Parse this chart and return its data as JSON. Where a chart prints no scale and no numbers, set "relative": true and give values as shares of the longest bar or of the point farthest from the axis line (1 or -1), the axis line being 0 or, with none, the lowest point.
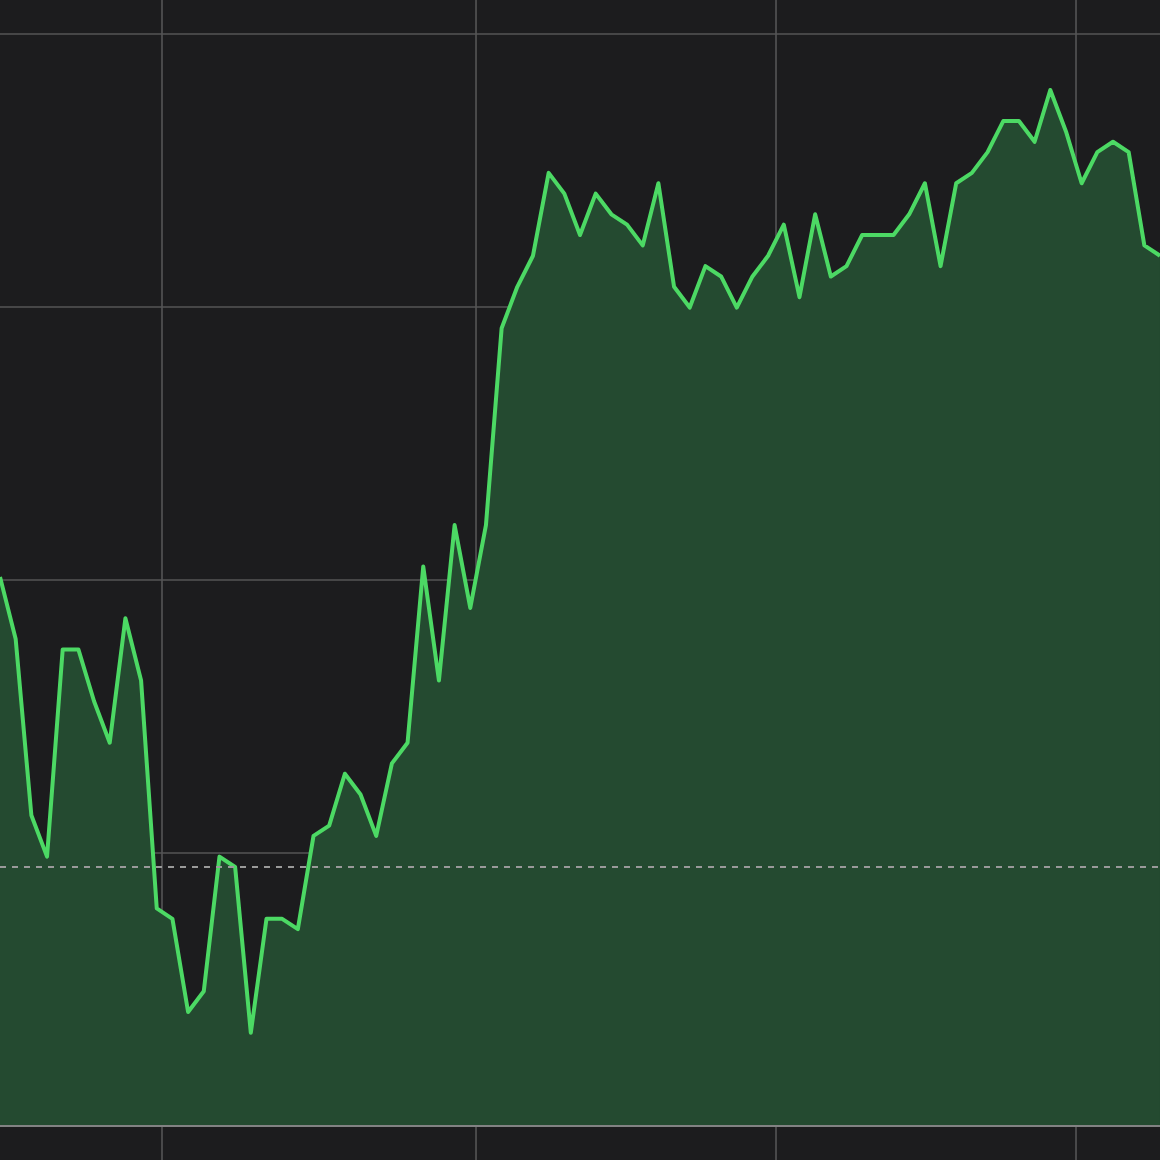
{
  "chart_data": {
    "type": "area",
    "relative": true,
    "color": "#4cd964",
    "grid": true,
    "categories": [
      null,
      null,
      null,
      null,
      null,
      null,
      null,
      null,
      null,
      null,
      null,
      null,
      null,
      null,
      null,
      null,
      null,
      null,
      null,
      null,
      null,
      null,
      null,
      null,
      null,
      null,
      null,
      null,
      null,
      null,
      null,
      null,
      null,
      null,
      null,
      null,
      null,
      null,
      null,
      null,
      null,
      null,
      null,
      null,
      null,
      null,
      null,
      null,
      null,
      null,
      null,
      null,
      null,
      null,
      null,
      null,
      null,
      null,
      null,
      null,
      null,
      null,
      null,
      null,
      null,
      null,
      null,
      null,
      null,
      null,
      null,
      null,
      null,
      null,
      null
    ],
    "values": [
      0.53,
      0.47,
      0.3,
      0.26,
      0.46,
      0.46,
      0.41,
      0.37,
      0.49,
      0.43,
      0.21,
      0.2,
      0.11,
      0.13,
      0.26,
      0.25,
      0.09,
      0.2,
      0.2,
      0.19,
      0.28,
      0.29,
      0.34,
      0.32,
      0.28,
      0.35,
      0.37,
      0.54,
      0.43,
      0.58,
      0.5,
      0.58,
      0.77,
      0.81,
      0.84,
      0.92,
      0.9,
      0.86,
      0.9,
      0.88,
      0.87,
      0.85,
      0.91,
      0.81,
      0.79,
      0.83,
      0.82,
      0.79,
      0.82,
      0.84,
      0.87,
      0.8,
      0.88,
      0.82,
      0.83,
      0.86,
      0.86,
      0.86,
      0.88,
      0.91,
      0.83,
      0.91,
      0.92,
      0.94,
      0.97,
      0.97,
      0.95,
      1,
      0.96,
      0.91,
      0.94,
      0.95,
      0.94,
      0.85,
      0.84
    ],
    "ref_lines": [
      {
        "axis": "y",
        "value": 0.25,
        "line_style": "dashed",
        "color": "#9a9a9a"
      }
    ]
  }
}
